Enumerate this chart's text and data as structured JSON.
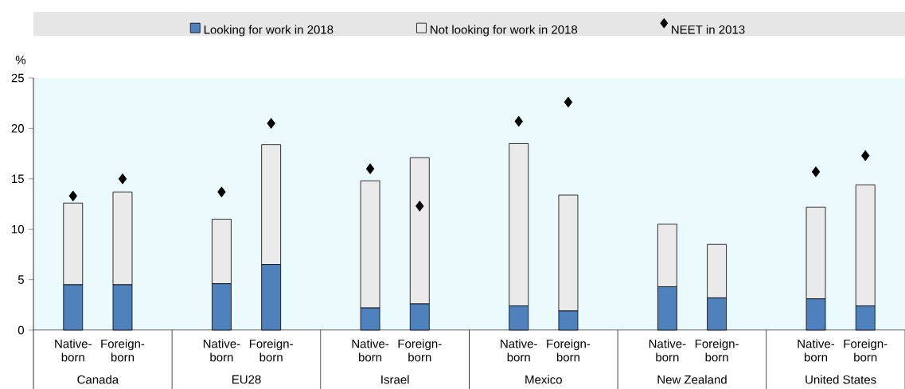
{
  "chart_data": {
    "type": "bar",
    "stacked": true,
    "ylabel": "%",
    "categories": [
      "Native-born",
      "Foreign-born",
      null,
      "Native-born",
      "Foreign-born",
      null,
      "Native-born",
      "Foreign-born",
      null,
      "Native-born",
      "Foreign-born",
      null,
      "Native-born",
      "Foreign-born",
      null,
      "Native-born",
      "Foreign-born"
    ],
    "series": [
      {
        "name": "Looking for work in 2018",
        "color": "#4f81bd",
        "values": [
          4.5,
          4.5,
          null,
          4.6,
          6.5,
          null,
          2.2,
          2.6,
          null,
          2.4,
          1.9,
          null,
          4.3,
          3.2,
          null,
          3.1,
          2.4
        ]
      },
      {
        "name": "Not looking for work in 2018",
        "color": "#eaeaea",
        "values": [
          8.1,
          9.2,
          null,
          6.4,
          11.9,
          null,
          12.6,
          14.5,
          null,
          16.1,
          11.5,
          null,
          6.2,
          5.3,
          null,
          9.1,
          12.0
        ]
      },
      {
        "name": "NEET in 2013",
        "type": "scatter",
        "marker": "diamond",
        "color": "#000000",
        "values": [
          13.3,
          15.0,
          null,
          13.7,
          20.5,
          null,
          16.0,
          12.3,
          null,
          20.7,
          22.6,
          null,
          null,
          null,
          null,
          15.7,
          17.3
        ]
      }
    ],
    "ylim": [
      0,
      25
    ],
    "yticks": [
      0,
      5,
      10,
      15,
      20,
      25
    ],
    "legend": "top",
    "annotations": [
      "Canada",
      "EU28",
      "Israel",
      "Mexico",
      "New Zealand",
      "United States"
    ]
  }
}
